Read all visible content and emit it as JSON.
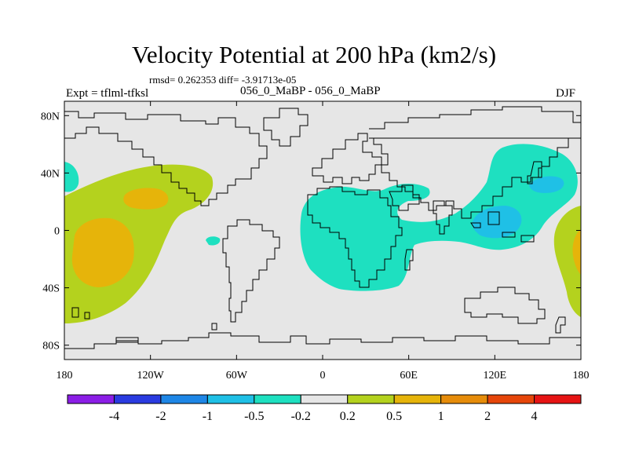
{
  "title": "Velocity Potential at 200 hPa (km2/s)",
  "stats": "rmsd= 0.262353 diff= -3.91713e-05",
  "experiment": "Expt = tflml-tfksl",
  "case": "056_0_MaBP - 056_0_MaBP",
  "season": "DJF",
  "map": {
    "lat_labels": [
      "80N",
      "40N",
      "0",
      "40S",
      "80S"
    ],
    "lat_values": [
      80,
      40,
      0,
      -40,
      -80
    ],
    "lon_labels": [
      "180",
      "120W",
      "60W",
      "0",
      "60E",
      "120E",
      "180"
    ],
    "lon_values": [
      -180,
      -120,
      -60,
      0,
      60,
      120,
      180
    ],
    "lat_range": [
      -90,
      90
    ],
    "lon_range": [
      -180,
      180
    ]
  },
  "colorbar": {
    "colors": [
      "#8b1ee6",
      "#2a3be0",
      "#1e86e6",
      "#1fc0e6",
      "#1ee0c0",
      "#e6e6e6",
      "#b4d21e",
      "#e6b40a",
      "#e68c0a",
      "#e6460a",
      "#e61414"
    ],
    "labels": [
      "-4",
      "-2",
      "-1",
      "-0.5",
      "-0.2",
      "0.2",
      "0.5",
      "1",
      "2",
      "4"
    ]
  },
  "palette": {
    "background_field": "#e6e6e6",
    "neg_light": "#1ee0c0",
    "neg_mid": "#1fc0e6",
    "pos_light": "#b4d21e",
    "pos_mid": "#e6b40a",
    "coastline": "#000000"
  }
}
